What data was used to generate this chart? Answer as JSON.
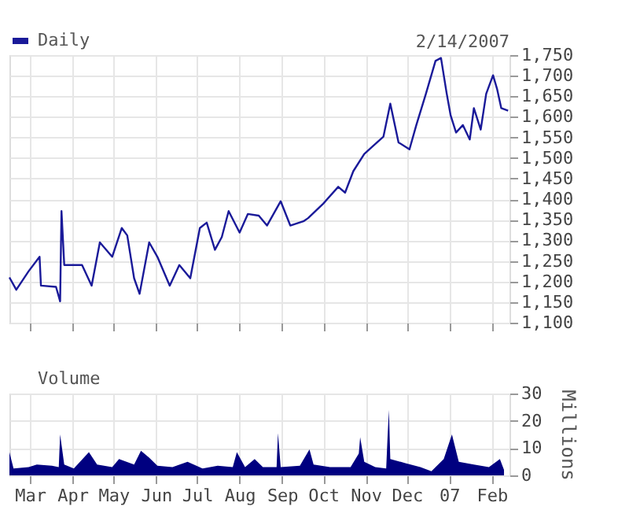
{
  "chart_data": [
    {
      "type": "line",
      "annotations": [
        "2/14/2007"
      ],
      "legend": "top left",
      "grid": true,
      "tick_labels": "y",
      "xlim": [
        "2006-02-14",
        "2007-02-14"
      ],
      "xticks": [
        {
          "value": "2006-03-01",
          "label": null
        },
        {
          "value": "2006-04-01",
          "label": null
        },
        {
          "value": "2006-05-01",
          "label": null
        },
        {
          "value": "2006-06-01",
          "label": null
        },
        {
          "value": "2006-07-01",
          "label": null
        },
        {
          "value": "2006-08-01",
          "label": null
        },
        {
          "value": "2006-09-01",
          "label": null
        },
        {
          "value": "2006-10-01",
          "label": null
        },
        {
          "value": "2006-11-01",
          "label": null
        },
        {
          "value": "2006-12-01",
          "label": null
        },
        {
          "value": "2007-01-01",
          "label": null
        },
        {
          "value": "2007-02-01",
          "label": null
        }
      ],
      "ylim": [
        1100,
        1750
      ],
      "yticks": [
        {
          "value": 1100,
          "label": "1,100"
        },
        {
          "value": 1150,
          "label": "1,150"
        },
        {
          "value": 1200,
          "label": "1,200"
        },
        {
          "value": 1250,
          "label": "1,250"
        },
        {
          "value": 1300,
          "label": "1,300"
        },
        {
          "value": 1350,
          "label": "1,350"
        },
        {
          "value": 1400,
          "label": "1,400"
        },
        {
          "value": 1450,
          "label": "1,450"
        },
        {
          "value": 1500,
          "label": "1,500"
        },
        {
          "value": 1550,
          "label": "1,550"
        },
        {
          "value": 1600,
          "label": "1,600"
        },
        {
          "value": 1650,
          "label": "1,650"
        },
        {
          "value": 1700,
          "label": "1,700"
        },
        {
          "value": 1750,
          "label": "1,750"
        }
      ],
      "series": [
        {
          "name": "Daily",
          "color": "#1a1a99",
          "x": [
            "2006-02-14",
            "2006-02-19",
            "2006-02-28",
            "2006-03-08",
            "2006-03-09",
            "2006-03-20",
            "2006-03-23",
            "2006-03-24",
            "2006-03-26",
            "2006-04-08",
            "2006-04-15",
            "2006-04-21",
            "2006-04-30",
            "2006-05-07",
            "2006-05-11",
            "2006-05-16",
            "2006-05-20",
            "2006-05-27",
            "2006-06-02",
            "2006-06-11",
            "2006-06-18",
            "2006-06-26",
            "2006-07-03",
            "2006-07-08",
            "2006-07-14",
            "2006-07-19",
            "2006-07-24",
            "2006-08-01",
            "2006-08-07",
            "2006-08-15",
            "2006-08-21",
            "2006-08-31",
            "2006-09-07",
            "2006-09-17",
            "2006-09-20",
            "2006-10-01",
            "2006-10-12",
            "2006-10-17",
            "2006-10-23",
            "2006-10-31",
            "2006-11-06",
            "2006-11-14",
            "2006-11-19",
            "2006-11-25",
            "2006-12-03",
            "2006-12-08",
            "2006-12-15",
            "2006-12-22",
            "2006-12-26",
            "2006-12-30",
            "2007-01-02",
            "2007-01-06",
            "2007-01-11",
            "2007-01-16",
            "2007-01-19",
            "2007-01-24",
            "2007-01-28",
            "2007-02-02",
            "2007-02-05",
            "2007-02-08",
            "2007-02-13"
          ],
          "values": [
            1210,
            1180,
            1225,
            1260,
            1190,
            1187,
            1152,
            1371,
            1240,
            1240,
            1190,
            1295,
            1260,
            1330,
            1312,
            1208,
            1170,
            1295,
            1260,
            1190,
            1240,
            1208,
            1330,
            1343,
            1277,
            1308,
            1371,
            1319,
            1364,
            1360,
            1336,
            1395,
            1336,
            1347,
            1354,
            1389,
            1430,
            1416,
            1468,
            1510,
            1528,
            1552,
            1632,
            1538,
            1521,
            1580,
            1656,
            1736,
            1743,
            1660,
            1604,
            1562,
            1580,
            1545,
            1621,
            1569,
            1656,
            1701,
            1667,
            1621,
            1615
          ]
        }
      ]
    },
    {
      "type": "area",
      "ylabel": "Millions",
      "legend": "top left",
      "grid": true,
      "xlim": [
        "2006-02-14",
        "2007-02-14"
      ],
      "xticks": [
        {
          "value": "2006-03-01",
          "label": "Mar"
        },
        {
          "value": "2006-04-01",
          "label": "Apr"
        },
        {
          "value": "2006-05-01",
          "label": "May"
        },
        {
          "value": "2006-06-01",
          "label": "Jun"
        },
        {
          "value": "2006-07-01",
          "label": "Jul"
        },
        {
          "value": "2006-08-01",
          "label": "Aug"
        },
        {
          "value": "2006-09-01",
          "label": "Sep"
        },
        {
          "value": "2006-10-01",
          "label": "Oct"
        },
        {
          "value": "2006-11-01",
          "label": "Nov"
        },
        {
          "value": "2006-12-01",
          "label": "Dec"
        },
        {
          "value": "2007-01-01",
          "label": "07"
        },
        {
          "value": "2007-02-01",
          "label": "Feb"
        }
      ],
      "ylim": [
        0,
        30
      ],
      "yticks": [
        0,
        10,
        20,
        30
      ],
      "series": [
        {
          "name": "Volume",
          "color": "#000080",
          "x": [
            "2006-02-14",
            "2006-02-17",
            "2006-02-28",
            "2006-03-06",
            "2006-03-17",
            "2006-03-22",
            "2006-03-23",
            "2006-03-26",
            "2006-04-02",
            "2006-04-13",
            "2006-04-19",
            "2006-04-30",
            "2006-05-05",
            "2006-05-16",
            "2006-05-21",
            "2006-05-27",
            "2006-06-02",
            "2006-06-13",
            "2006-06-24",
            "2006-07-05",
            "2006-07-16",
            "2006-07-27",
            "2006-07-30",
            "2006-08-05",
            "2006-08-12",
            "2006-08-18",
            "2006-08-28",
            "2006-08-29",
            "2006-08-31",
            "2006-09-14",
            "2006-09-21",
            "2006-09-24",
            "2006-10-06",
            "2006-10-21",
            "2006-10-27",
            "2006-10-28",
            "2006-10-31",
            "2006-11-08",
            "2006-11-16",
            "2006-11-17",
            "2006-11-18",
            "2006-11-19",
            "2006-11-30",
            "2006-12-11",
            "2006-12-19",
            "2006-12-28",
            "2007-01-03",
            "2007-01-08",
            "2007-01-19",
            "2007-01-30",
            "2007-02-07",
            "2007-02-10"
          ],
          "values": [
            8.5,
            2.5,
            3,
            4,
            3.5,
            3,
            15,
            4,
            2.5,
            8.5,
            4,
            3,
            6,
            4,
            9,
            6.5,
            3.5,
            3,
            5,
            2.5,
            3.5,
            3,
            8.5,
            3,
            6,
            3,
            3,
            15.5,
            3,
            3.5,
            9.5,
            4,
            3,
            3,
            8,
            14,
            5,
            3,
            2.5,
            14,
            24,
            6,
            4.5,
            3,
            1.5,
            6,
            15,
            5,
            4,
            3,
            6,
            2
          ]
        }
      ]
    }
  ]
}
